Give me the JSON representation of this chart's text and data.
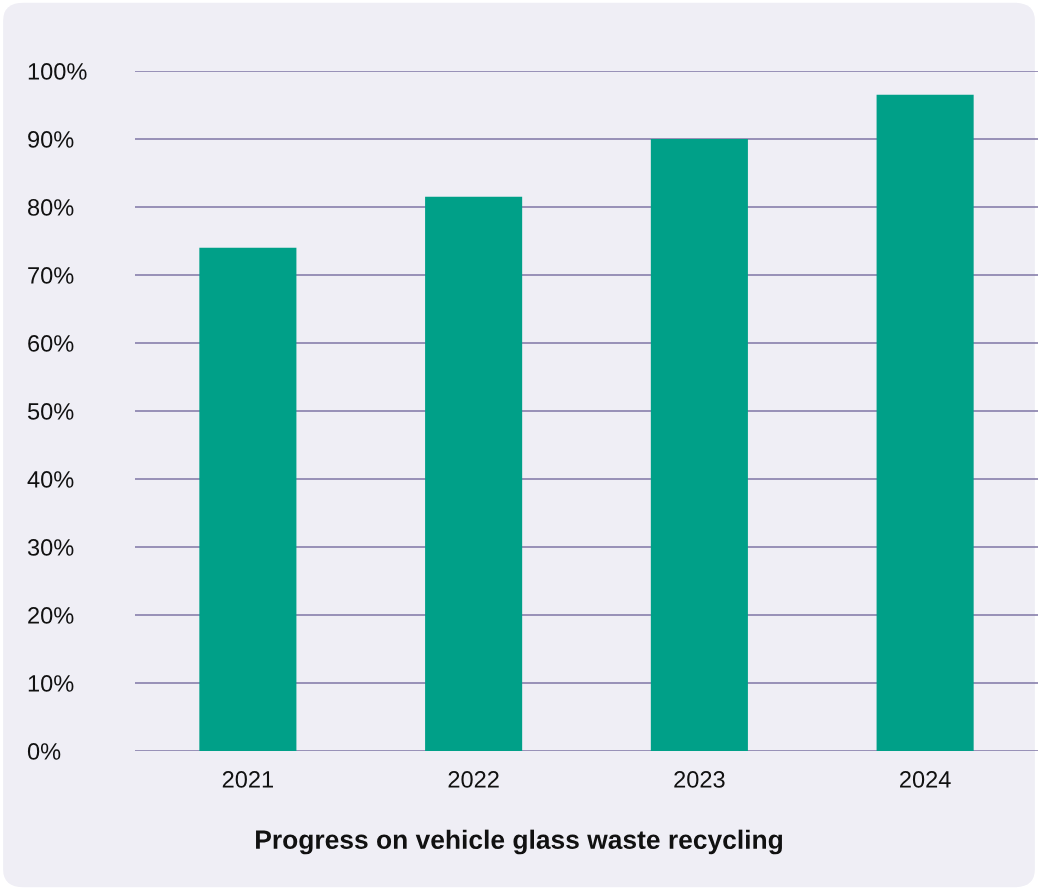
{
  "chart_data": {
    "type": "bar",
    "title": "Progress on vehicle glass waste recycling",
    "categories": [
      "2021",
      "2022",
      "2023",
      "2024"
    ],
    "values": [
      74,
      81.5,
      90,
      96.5
    ],
    "color": "#00a088",
    "ylim": [
      0,
      100
    ],
    "yticks": [
      {
        "value": 0,
        "label": "0%"
      },
      {
        "value": 10,
        "label": "10%"
      },
      {
        "value": 20,
        "label": "20%"
      },
      {
        "value": 30,
        "label": "30%"
      },
      {
        "value": 40,
        "label": "40%"
      },
      {
        "value": 50,
        "label": "50%"
      },
      {
        "value": 60,
        "label": "60%"
      },
      {
        "value": 70,
        "label": "70%"
      },
      {
        "value": 80,
        "label": "80%"
      },
      {
        "value": 90,
        "label": "90%"
      },
      {
        "value": 100,
        "label": "100%"
      }
    ],
    "grid": "y"
  }
}
